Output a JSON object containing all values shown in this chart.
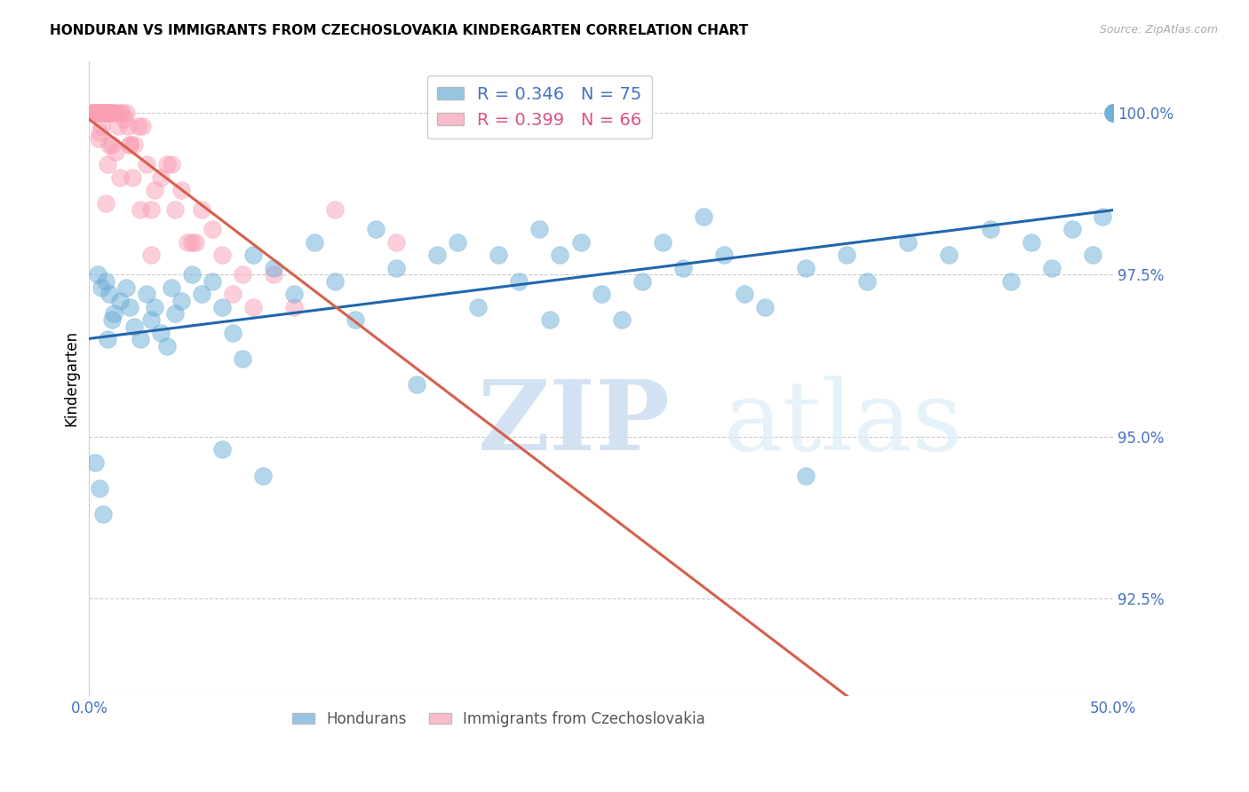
{
  "title": "HONDURAN VS IMMIGRANTS FROM CZECHOSLOVAKIA KINDERGARTEN CORRELATION CHART",
  "source": "Source: ZipAtlas.com",
  "ylabel": "Kindergarten",
  "xmin": 0.0,
  "xmax": 50.0,
  "ymin": 91.0,
  "ymax": 100.8,
  "yticks": [
    92.5,
    95.0,
    97.5,
    100.0
  ],
  "ytick_labels": [
    "92.5%",
    "95.0%",
    "97.5%",
    "100.0%"
  ],
  "xticks": [
    0.0,
    10.0,
    20.0,
    30.0,
    40.0,
    50.0
  ],
  "xtick_labels": [
    "0.0%",
    "",
    "",
    "",
    "",
    "50.0%"
  ],
  "blue_R": 0.346,
  "blue_N": 75,
  "pink_R": 0.399,
  "pink_N": 66,
  "blue_color": "#6baed6",
  "pink_color": "#fa9fb5",
  "blue_line_color": "#2166ac",
  "pink_line_color": "#d6604d",
  "legend_label_blue": "Hondurans",
  "legend_label_pink": "Immigrants from Czechoslovakia",
  "watermark_zip": "ZIP",
  "watermark_atlas": "atlas",
  "blue_x": [
    0.4,
    0.6,
    0.8,
    1.0,
    1.2,
    1.5,
    1.8,
    2.0,
    2.2,
    2.5,
    2.8,
    3.0,
    3.2,
    3.5,
    3.8,
    4.0,
    4.2,
    4.5,
    5.0,
    5.5,
    6.0,
    6.5,
    7.0,
    7.5,
    8.0,
    9.0,
    10.0,
    11.0,
    12.0,
    13.0,
    14.0,
    15.0,
    16.0,
    17.0,
    18.0,
    19.0,
    20.0,
    21.0,
    22.0,
    23.0,
    24.0,
    25.0,
    26.0,
    27.0,
    28.0,
    29.0,
    30.0,
    31.0,
    32.0,
    33.0,
    35.0,
    37.0,
    38.0,
    40.0,
    42.0,
    44.0,
    45.0,
    46.0,
    47.0,
    48.0,
    49.0,
    49.5,
    50.0,
    50.0,
    50.0,
    50.0,
    0.3,
    0.5,
    0.7,
    0.9,
    1.1,
    6.5,
    8.5,
    22.5,
    35.0
  ],
  "blue_y": [
    97.5,
    97.3,
    97.4,
    97.2,
    96.9,
    97.1,
    97.3,
    97.0,
    96.7,
    96.5,
    97.2,
    96.8,
    97.0,
    96.6,
    96.4,
    97.3,
    96.9,
    97.1,
    97.5,
    97.2,
    97.4,
    97.0,
    96.6,
    96.2,
    97.8,
    97.6,
    97.2,
    98.0,
    97.4,
    96.8,
    98.2,
    97.6,
    95.8,
    97.8,
    98.0,
    97.0,
    97.8,
    97.4,
    98.2,
    97.8,
    98.0,
    97.2,
    96.8,
    97.4,
    98.0,
    97.6,
    98.4,
    97.8,
    97.2,
    97.0,
    97.6,
    97.8,
    97.4,
    98.0,
    97.8,
    98.2,
    97.4,
    98.0,
    97.6,
    98.2,
    97.8,
    98.4,
    100.0,
    100.0,
    100.0,
    100.0,
    94.6,
    94.2,
    93.8,
    96.5,
    96.8,
    94.8,
    94.4,
    96.8,
    94.4
  ],
  "pink_x": [
    0.1,
    0.15,
    0.2,
    0.25,
    0.3,
    0.35,
    0.4,
    0.45,
    0.5,
    0.55,
    0.6,
    0.65,
    0.7,
    0.75,
    0.8,
    0.85,
    0.9,
    0.95,
    1.0,
    1.1,
    1.2,
    1.3,
    1.4,
    1.5,
    1.6,
    1.7,
    1.8,
    1.9,
    2.0,
    2.2,
    2.4,
    2.6,
    2.8,
    3.0,
    3.5,
    4.0,
    4.5,
    5.0,
    5.5,
    6.0,
    7.0,
    8.0,
    9.0,
    10.0,
    12.0,
    15.0,
    1.1,
    2.1,
    0.45,
    3.2,
    4.8,
    0.8,
    1.5,
    2.5,
    3.8,
    5.2,
    4.2,
    6.5,
    1.0,
    1.3,
    0.6,
    0.9,
    2.0,
    7.5,
    3.0,
    0.5
  ],
  "pink_y": [
    100.0,
    100.0,
    100.0,
    100.0,
    100.0,
    100.0,
    100.0,
    100.0,
    100.0,
    100.0,
    100.0,
    100.0,
    100.0,
    100.0,
    100.0,
    100.0,
    100.0,
    100.0,
    100.0,
    100.0,
    100.0,
    100.0,
    99.8,
    100.0,
    100.0,
    99.9,
    100.0,
    99.8,
    99.5,
    99.5,
    99.8,
    99.8,
    99.2,
    98.5,
    99.0,
    99.2,
    98.8,
    98.0,
    98.5,
    98.2,
    97.2,
    97.0,
    97.5,
    97.0,
    98.5,
    98.0,
    99.5,
    99.0,
    99.6,
    98.8,
    98.0,
    98.6,
    99.0,
    98.5,
    99.2,
    98.0,
    98.5,
    97.8,
    99.5,
    99.4,
    99.8,
    99.2,
    99.5,
    97.5,
    97.8,
    99.7
  ]
}
